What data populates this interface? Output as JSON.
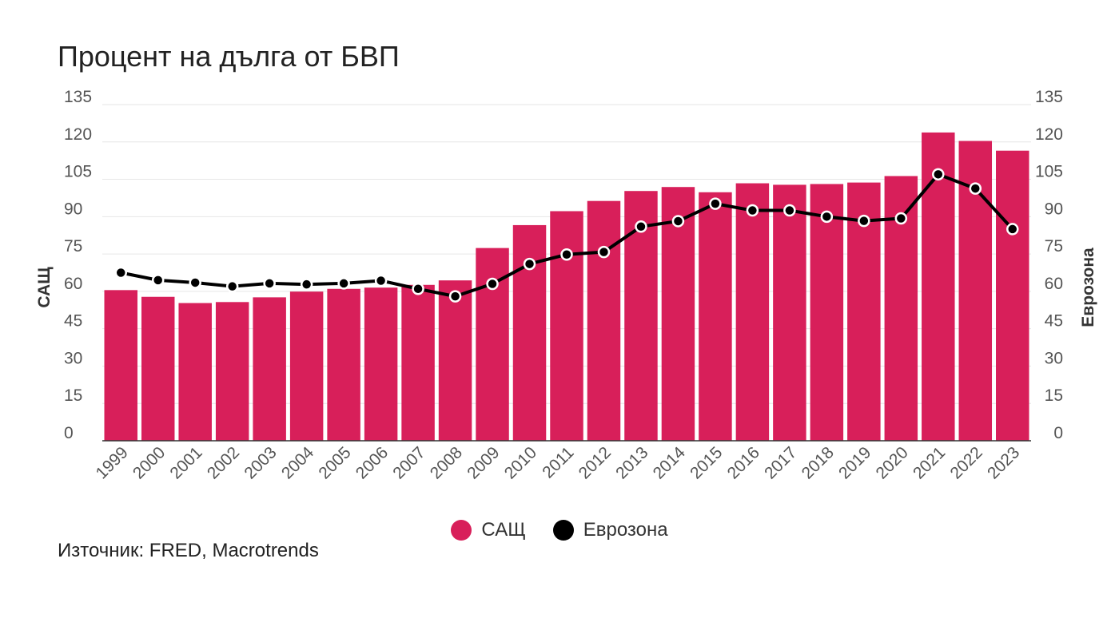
{
  "title": "Процент на дълга от БВП",
  "source": "Източник: FRED, Macrotrends",
  "colors": {
    "usa": "#d81f5a",
    "eurozone": "#000000",
    "grid": "#e6e6e6"
  },
  "chart_data": {
    "type": "bar",
    "title": "Процент на дълга от БВП",
    "categories": [
      "1999",
      "2000",
      "2001",
      "2002",
      "2003",
      "2004",
      "2005",
      "2006",
      "2007",
      "2008",
      "2009",
      "2010",
      "2011",
      "2012",
      "2013",
      "2014",
      "2015",
      "2016",
      "2017",
      "2018",
      "2019",
      "2020",
      "2021",
      "2022",
      "2023"
    ],
    "series": [
      {
        "name": "САЩ",
        "type": "bar",
        "axis": "left",
        "values": [
          60.5,
          57.8,
          55.3,
          55.7,
          57.6,
          59.9,
          61.0,
          61.5,
          62.6,
          64.4,
          77.4,
          86.6,
          92.2,
          96.3,
          100.3,
          101.9,
          99.8,
          103.4,
          102.8,
          103.1,
          103.7,
          106.3,
          123.8,
          120.4,
          116.5
        ]
      },
      {
        "name": "Еврозона",
        "type": "line",
        "axis": "right",
        "values": [
          67.5,
          64.5,
          63.5,
          62.0,
          63.2,
          62.8,
          63.2,
          64.3,
          61.0,
          58.0,
          63.0,
          71.0,
          74.8,
          75.8,
          86.0,
          88.2,
          95.2,
          92.5,
          92.5,
          90.0,
          88.3,
          89.3,
          107.0,
          101.3,
          85.0
        ]
      }
    ],
    "ylabel": "САЩ",
    "y2label": "Еврозона",
    "ylim": [
      0,
      135
    ],
    "y2lim": [
      0,
      135
    ],
    "yticks": [
      "0",
      "15",
      "30",
      "45",
      "60",
      "75",
      "90",
      "105",
      "120",
      "135"
    ],
    "grid": true,
    "legend": "bottom"
  }
}
